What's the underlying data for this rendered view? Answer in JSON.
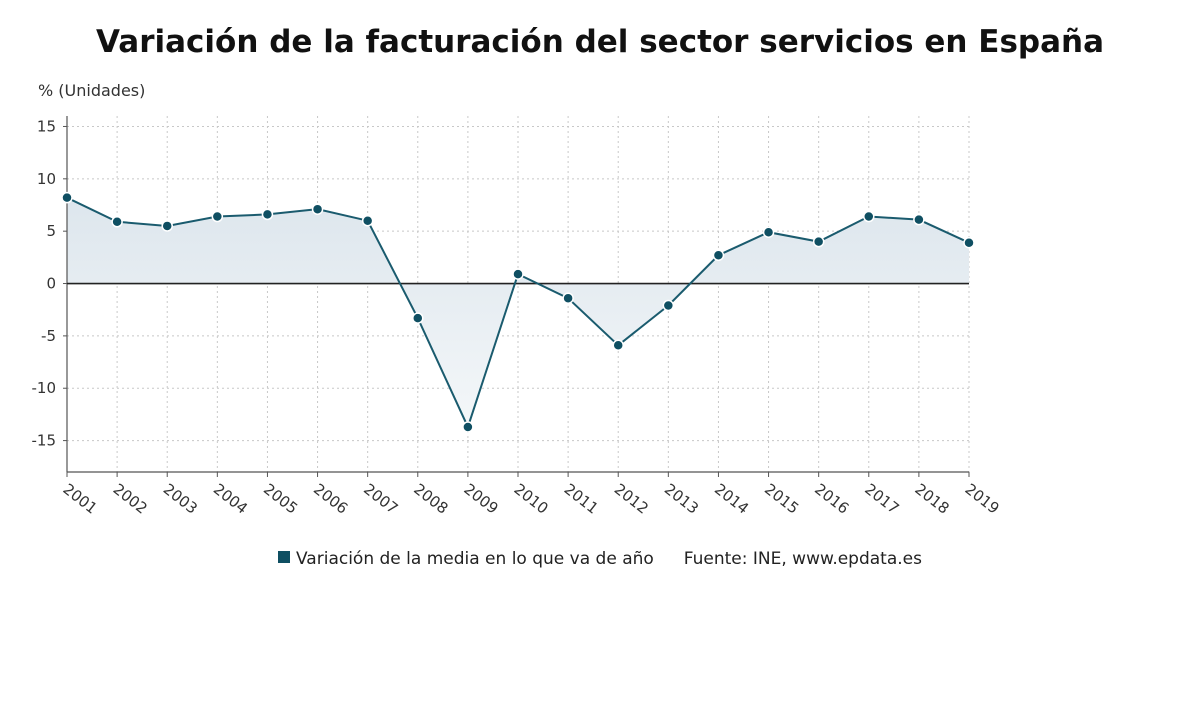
{
  "chart_data": {
    "type": "area",
    "title": "Variación de la facturación del sector servicios en España",
    "ylabel": "% (Unidades)",
    "xlabel": "",
    "x": [
      "2001",
      "2002",
      "2003",
      "2004",
      "2005",
      "2006",
      "2007",
      "2008",
      "2009",
      "2010",
      "2011",
      "2012",
      "2013",
      "2014",
      "2015",
      "2016",
      "2017",
      "2018",
      "2019"
    ],
    "series": [
      {
        "name": "Variación de la media en lo que va de año",
        "values": [
          8.2,
          5.9,
          5.5,
          6.4,
          6.6,
          7.1,
          6.0,
          -3.3,
          -13.7,
          0.9,
          -1.4,
          -5.9,
          -2.1,
          2.7,
          4.9,
          4.0,
          6.4,
          6.1,
          3.9
        ]
      }
    ],
    "yticks": [
      "15",
      "10",
      "5",
      "0",
      "-5",
      "-10",
      "-15"
    ],
    "ylim": [
      -18,
      16
    ],
    "grid": true,
    "legend_position": "bottom",
    "source": "Fuente: INE, www.epdata.es",
    "colors": {
      "line": "#1a5b6e",
      "marker": "#0f4f62",
      "fill_top": "#dde6ed",
      "fill_bottom": "#f4f7f9",
      "grid": "#c8c8c8",
      "zero_line": "#222222"
    }
  }
}
